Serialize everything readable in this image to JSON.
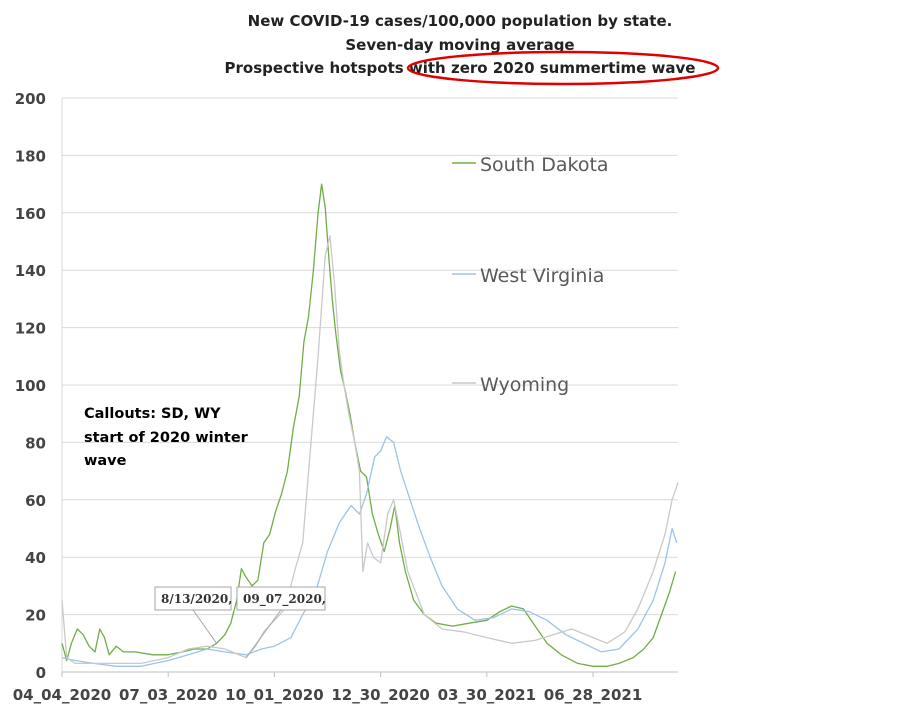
{
  "chart_data": {
    "type": "line",
    "title": [
      "New COVID-19 cases/100,000 population by state.",
      "Seven-day moving average",
      "Prospective hotspots with zero 2020 summertime wave"
    ],
    "xlabel": "",
    "ylabel": "",
    "ylim": [
      0,
      200
    ],
    "yticks": [
      "0",
      "20",
      "40",
      "60",
      "80",
      "100",
      "120",
      "140",
      "160",
      "180",
      "200"
    ],
    "xlim": [
      "2020-04-04",
      "2021-09-08"
    ],
    "xticks": [
      "04_04_2020",
      "07_03_2020",
      "10_01_2020",
      "12_30_2020",
      "03_30_2021",
      "06_28_2021"
    ],
    "xtick_dates": [
      "2020-04-04",
      "2020-07-03",
      "2020-10-01",
      "2020-12-30",
      "2021-03-30",
      "2021-06-28"
    ],
    "grid": true,
    "legend_placement": "right",
    "annotation": [
      "Callouts:  SD, WY",
      "start of 2020 winter",
      "wave"
    ],
    "callouts": [
      {
        "text": "8/13/2020,",
        "date": "2020-08-13",
        "value": 10
      },
      {
        "text": "09_07_2020,",
        "date": "2020-09-07",
        "value": 5
      }
    ],
    "series": [
      {
        "name": "South Dakota",
        "color": "#70ad47",
        "points": [
          [
            "2020-04-04",
            10
          ],
          [
            "2020-04-08",
            4
          ],
          [
            "2020-04-12",
            10
          ],
          [
            "2020-04-17",
            15
          ],
          [
            "2020-04-22",
            13
          ],
          [
            "2020-04-27",
            9
          ],
          [
            "2020-05-02",
            7
          ],
          [
            "2020-05-06",
            15
          ],
          [
            "2020-05-10",
            12
          ],
          [
            "2020-05-14",
            6
          ],
          [
            "2020-05-20",
            9
          ],
          [
            "2020-05-26",
            7
          ],
          [
            "2020-06-05",
            7
          ],
          [
            "2020-06-20",
            6
          ],
          [
            "2020-07-03",
            6
          ],
          [
            "2020-07-15",
            7
          ],
          [
            "2020-07-25",
            8
          ],
          [
            "2020-08-05",
            8
          ],
          [
            "2020-08-13",
            10
          ],
          [
            "2020-08-20",
            13
          ],
          [
            "2020-08-25",
            17
          ],
          [
            "2020-08-30",
            25
          ],
          [
            "2020-09-03",
            36
          ],
          [
            "2020-09-07",
            33
          ],
          [
            "2020-09-12",
            30
          ],
          [
            "2020-09-17",
            32
          ],
          [
            "2020-09-22",
            45
          ],
          [
            "2020-09-27",
            48
          ],
          [
            "2020-10-02",
            56
          ],
          [
            "2020-10-07",
            62
          ],
          [
            "2020-10-12",
            70
          ],
          [
            "2020-10-17",
            85
          ],
          [
            "2020-10-22",
            96
          ],
          [
            "2020-10-26",
            115
          ],
          [
            "2020-10-30",
            124
          ],
          [
            "2020-11-03",
            140
          ],
          [
            "2020-11-07",
            160
          ],
          [
            "2020-11-10",
            170
          ],
          [
            "2020-11-13",
            162
          ],
          [
            "2020-11-16",
            145
          ],
          [
            "2020-11-19",
            130
          ],
          [
            "2020-11-22",
            118
          ],
          [
            "2020-11-26",
            105
          ],
          [
            "2020-11-30",
            98
          ],
          [
            "2020-12-04",
            90
          ],
          [
            "2020-12-08",
            80
          ],
          [
            "2020-12-13",
            70
          ],
          [
            "2020-12-18",
            68
          ],
          [
            "2020-12-23",
            55
          ],
          [
            "2020-12-28",
            48
          ],
          [
            "2021-01-02",
            42
          ],
          [
            "2021-01-07",
            50
          ],
          [
            "2021-01-11",
            58
          ],
          [
            "2021-01-15",
            45
          ],
          [
            "2021-01-20",
            35
          ],
          [
            "2021-01-27",
            25
          ],
          [
            "2021-02-05",
            20
          ],
          [
            "2021-02-15",
            17
          ],
          [
            "2021-03-01",
            16
          ],
          [
            "2021-03-15",
            17
          ],
          [
            "2021-03-30",
            18
          ],
          [
            "2021-04-10",
            21
          ],
          [
            "2021-04-20",
            23
          ],
          [
            "2021-04-30",
            22
          ],
          [
            "2021-05-10",
            16
          ],
          [
            "2021-05-20",
            10
          ],
          [
            "2021-06-01",
            6
          ],
          [
            "2021-06-15",
            3
          ],
          [
            "2021-06-28",
            2
          ],
          [
            "2021-07-10",
            2
          ],
          [
            "2021-07-20",
            3
          ],
          [
            "2021-08-01",
            5
          ],
          [
            "2021-08-10",
            8
          ],
          [
            "2021-08-18",
            12
          ],
          [
            "2021-08-25",
            20
          ],
          [
            "2021-09-01",
            28
          ],
          [
            "2021-09-06",
            35
          ]
        ]
      },
      {
        "name": "West Virginia",
        "color": "#9dc3e6",
        "points": [
          [
            "2020-04-04",
            5
          ],
          [
            "2020-04-15",
            4
          ],
          [
            "2020-05-01",
            3
          ],
          [
            "2020-05-20",
            2
          ],
          [
            "2020-06-10",
            2
          ],
          [
            "2020-07-03",
            4
          ],
          [
            "2020-07-20",
            6
          ],
          [
            "2020-08-05",
            8
          ],
          [
            "2020-08-20",
            7
          ],
          [
            "2020-09-07",
            6
          ],
          [
            "2020-09-20",
            8
          ],
          [
            "2020-10-01",
            9
          ],
          [
            "2020-10-15",
            12
          ],
          [
            "2020-10-25",
            20
          ],
          [
            "2020-11-05",
            28
          ],
          [
            "2020-11-15",
            42
          ],
          [
            "2020-11-25",
            52
          ],
          [
            "2020-12-05",
            58
          ],
          [
            "2020-12-12",
            55
          ],
          [
            "2020-12-18",
            62
          ],
          [
            "2020-12-25",
            75
          ],
          [
            "2020-12-30",
            77
          ],
          [
            "2021-01-04",
            82
          ],
          [
            "2021-01-10",
            80
          ],
          [
            "2021-01-16",
            70
          ],
          [
            "2021-01-24",
            60
          ],
          [
            "2021-02-01",
            50
          ],
          [
            "2021-02-10",
            40
          ],
          [
            "2021-02-20",
            30
          ],
          [
            "2021-03-05",
            22
          ],
          [
            "2021-03-20",
            18
          ],
          [
            "2021-04-05",
            19
          ],
          [
            "2021-04-20",
            22
          ],
          [
            "2021-05-05",
            21
          ],
          [
            "2021-05-20",
            18
          ],
          [
            "2021-06-05",
            13
          ],
          [
            "2021-06-20",
            10
          ],
          [
            "2021-07-05",
            7
          ],
          [
            "2021-07-20",
            8
          ],
          [
            "2021-08-05",
            15
          ],
          [
            "2021-08-18",
            25
          ],
          [
            "2021-08-28",
            38
          ],
          [
            "2021-09-03",
            50
          ],
          [
            "2021-09-07",
            45
          ]
        ]
      },
      {
        "name": "Wyoming",
        "color": "#c9c9c9",
        "points": [
          [
            "2020-04-04",
            25
          ],
          [
            "2020-04-08",
            5
          ],
          [
            "2020-04-15",
            3
          ],
          [
            "2020-05-01",
            3
          ],
          [
            "2020-05-20",
            3
          ],
          [
            "2020-06-10",
            3
          ],
          [
            "2020-07-03",
            5
          ],
          [
            "2020-07-20",
            8
          ],
          [
            "2020-08-05",
            9
          ],
          [
            "2020-08-20",
            8
          ],
          [
            "2020-09-07",
            5
          ],
          [
            "2020-09-15",
            9
          ],
          [
            "2020-09-22",
            14
          ],
          [
            "2020-10-01",
            18
          ],
          [
            "2020-10-10",
            22
          ],
          [
            "2020-10-18",
            35
          ],
          [
            "2020-10-25",
            45
          ],
          [
            "2020-11-01",
            80
          ],
          [
            "2020-11-07",
            110
          ],
          [
            "2020-11-13",
            145
          ],
          [
            "2020-11-17",
            152
          ],
          [
            "2020-11-21",
            135
          ],
          [
            "2020-11-25",
            112
          ],
          [
            "2020-11-29",
            100
          ],
          [
            "2020-12-03",
            90
          ],
          [
            "2020-12-08",
            80
          ],
          [
            "2020-12-12",
            70
          ],
          [
            "2020-12-15",
            35
          ],
          [
            "2020-12-19",
            45
          ],
          [
            "2020-12-24",
            40
          ],
          [
            "2020-12-30",
            38
          ],
          [
            "2021-01-05",
            55
          ],
          [
            "2021-01-10",
            60
          ],
          [
            "2021-01-15",
            50
          ],
          [
            "2021-01-22",
            35
          ],
          [
            "2021-02-05",
            20
          ],
          [
            "2021-02-20",
            15
          ],
          [
            "2021-03-10",
            14
          ],
          [
            "2021-03-30",
            12
          ],
          [
            "2021-04-20",
            10
          ],
          [
            "2021-05-10",
            11
          ],
          [
            "2021-05-25",
            13
          ],
          [
            "2021-06-10",
            15
          ],
          [
            "2021-06-28",
            12
          ],
          [
            "2021-07-10",
            10
          ],
          [
            "2021-07-25",
            14
          ],
          [
            "2021-08-05",
            22
          ],
          [
            "2021-08-18",
            35
          ],
          [
            "2021-08-28",
            48
          ],
          [
            "2021-09-03",
            60
          ],
          [
            "2021-09-08",
            66
          ]
        ]
      }
    ]
  }
}
